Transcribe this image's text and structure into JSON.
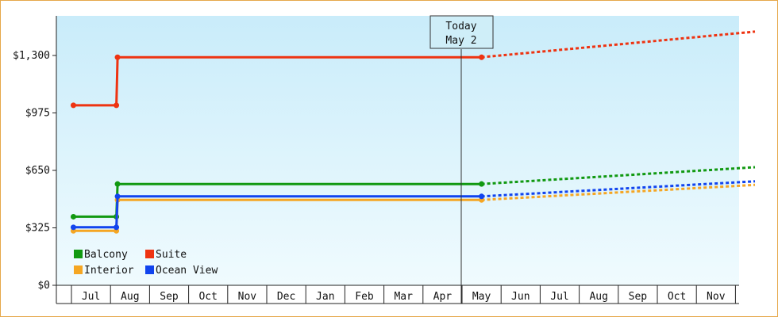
{
  "chart_data": {
    "type": "line",
    "categories": [
      "Jul",
      "Aug",
      "Sep",
      "Oct",
      "Nov",
      "Dec",
      "Jan",
      "Feb",
      "Mar",
      "Apr",
      "May",
      "Jun",
      "Jul",
      "Aug",
      "Sep",
      "Oct",
      "Nov"
    ],
    "y_ticks": [
      "$0",
      "$325",
      "$650",
      "$975",
      "$1,300"
    ],
    "ylim": [
      0,
      1430
    ],
    "today": {
      "line1": "Today",
      "line2": "May 2"
    },
    "legend": {
      "placement": "bottom-left"
    },
    "series": [
      {
        "name": "Balcony",
        "color": "#119911",
        "points": [
          [
            -0.45,
            388
          ],
          [
            0.65,
            388
          ],
          [
            0.68,
            573
          ],
          [
            10.0,
            573
          ]
        ],
        "forecast": [
          [
            10.0,
            573
          ],
          [
            17.0,
            668
          ]
        ]
      },
      {
        "name": "Suite",
        "color": "#ee3311",
        "points": [
          [
            -0.45,
            1018
          ],
          [
            0.65,
            1018
          ],
          [
            0.68,
            1290
          ],
          [
            10.0,
            1290
          ]
        ],
        "forecast": [
          [
            10.0,
            1290
          ],
          [
            17.0,
            1435
          ]
        ]
      },
      {
        "name": "Interior",
        "color": "#f5a623",
        "points": [
          [
            -0.45,
            308
          ],
          [
            0.65,
            308
          ],
          [
            0.68,
            483
          ],
          [
            10.0,
            483
          ]
        ],
        "forecast": [
          [
            10.0,
            483
          ],
          [
            17.0,
            568
          ]
        ]
      },
      {
        "name": "Ocean View",
        "color": "#1144ee",
        "points": [
          [
            -0.45,
            328
          ],
          [
            0.65,
            328
          ],
          [
            0.68,
            503
          ],
          [
            10.0,
            503
          ]
        ],
        "forecast": [
          [
            10.0,
            503
          ],
          [
            17.0,
            588
          ]
        ]
      }
    ]
  }
}
